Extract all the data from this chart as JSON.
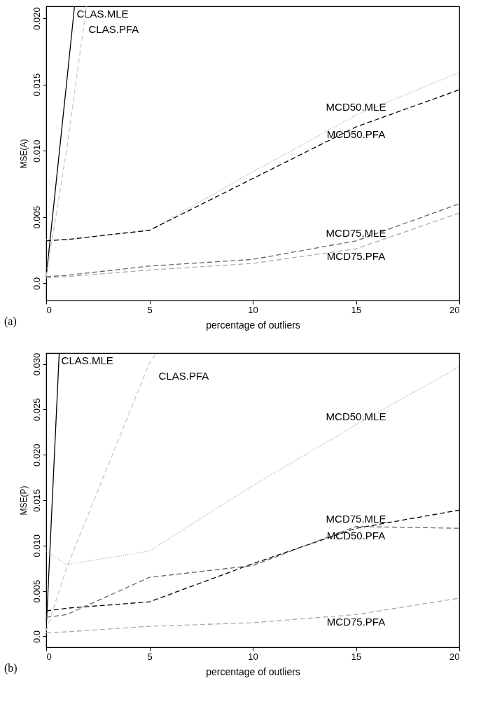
{
  "chart_data": [
    {
      "type": "line",
      "xlabel": "percentage of outliers",
      "ylabel": "MSE(A)",
      "xlim": [
        0,
        20
      ],
      "xticks": [
        0,
        5,
        10,
        15,
        20
      ],
      "ylim": [
        -0.0013,
        0.0209
      ],
      "yticks": [
        {
          "value": 0,
          "label": "0.0"
        },
        0.005,
        {
          "value": 0.01,
          "label": "0.010"
        },
        0.015,
        {
          "value": 0.02,
          "label": "0.020"
        }
      ],
      "grid": false,
      "marker": "none",
      "series": [
        {
          "name": "CLAS.MLE",
          "color": "#000000",
          "line_style": "solid",
          "x": [
            0,
            1,
            1.37
          ],
          "values": [
            0.0005,
            0.0153,
            0.0209
          ]
        },
        {
          "name": "CLAS.PFA",
          "color": "#c8c8c8",
          "line_style": "dashed",
          "x": [
            0,
            1,
            1.95
          ],
          "values": [
            0.0005,
            0.0102,
            0.0209
          ]
        },
        {
          "name": "MCD50.MLE",
          "color": "#aaaaaa",
          "line_style": "dotted",
          "x": [
            0,
            1,
            5,
            10,
            15,
            20
          ],
          "values": [
            0.0033,
            0.0033,
            0.004,
            0.0084,
            0.0127,
            0.0159
          ]
        },
        {
          "name": "MCD50.PFA",
          "color": "#000000",
          "line_style": "dashed",
          "x": [
            0,
            1,
            5,
            10,
            15,
            20
          ],
          "values": [
            0.0032,
            0.0033,
            0.004,
            0.0079,
            0.0118,
            0.0146
          ]
        },
        {
          "name": "MCD75.MLE",
          "color": "#666666",
          "line_style": "dashed",
          "x": [
            0,
            1,
            5,
            10,
            15,
            20
          ],
          "values": [
            0.0005,
            0.0006,
            0.0013,
            0.0018,
            0.0032,
            0.006
          ]
        },
        {
          "name": "MCD75.PFA",
          "color": "#aaaaaa",
          "line_style": "dashed",
          "x": [
            0,
            1,
            5,
            10,
            15,
            20
          ],
          "values": [
            0.0004,
            0.0005,
            0.001,
            0.0015,
            0.0026,
            0.0053
          ]
        }
      ],
      "annotations": [
        "(a)"
      ]
    },
    {
      "type": "line",
      "xlabel": "percentage of outliers",
      "ylabel": "MSE(P)",
      "xlim": [
        0,
        20
      ],
      "xticks": [
        0,
        5,
        10,
        15,
        20
      ],
      "ylim": [
        -0.0012,
        0.0312
      ],
      "yticks": [
        {
          "value": 0,
          "label": "0.0"
        },
        0.005,
        {
          "value": 0.01,
          "label": "0.010"
        },
        0.015,
        {
          "value": 0.02,
          "label": "0.020"
        },
        0.025,
        {
          "value": 0.03,
          "label": "0.030"
        }
      ],
      "grid": false,
      "marker": "none",
      "series": [
        {
          "name": "CLAS.MLE",
          "color": "#000000",
          "line_style": "solid",
          "x": [
            0,
            0.63
          ],
          "values": [
            0.0008,
            0.0312
          ]
        },
        {
          "name": "CLAS.PFA",
          "color": "#c8c8c8",
          "line_style": "dashed",
          "x": [
            0,
            1,
            5,
            5.34
          ],
          "values": [
            0.0006,
            0.0076,
            0.0301,
            0.0312
          ]
        },
        {
          "name": "MCD50.MLE",
          "color": "#aaaaaa",
          "line_style": "dotted",
          "x": [
            0,
            1,
            5,
            10,
            15,
            20
          ],
          "values": [
            0.0094,
            0.0079,
            0.0094,
            0.0166,
            0.0233,
            0.0297
          ]
        },
        {
          "name": "MCD50.PFA",
          "color": "#000000",
          "line_style": "dashed",
          "x": [
            0,
            1,
            5,
            10,
            15,
            20
          ],
          "values": [
            0.0028,
            0.0031,
            0.0038,
            0.008,
            0.0119,
            0.0139
          ]
        },
        {
          "name": "MCD75.MLE",
          "color": "#666666",
          "line_style": "dashed",
          "x": [
            0,
            1,
            5,
            10,
            15,
            20
          ],
          "values": [
            0.0021,
            0.0024,
            0.0065,
            0.0078,
            0.0121,
            0.0119
          ]
        },
        {
          "name": "MCD75.PFA",
          "color": "#aaaaaa",
          "line_style": "dashed",
          "x": [
            0,
            1,
            5,
            10,
            15,
            20
          ],
          "values": [
            0.0004,
            0.0005,
            0.0011,
            0.0015,
            0.0024,
            0.0042
          ]
        }
      ],
      "annotations": [
        "(b)"
      ]
    }
  ]
}
